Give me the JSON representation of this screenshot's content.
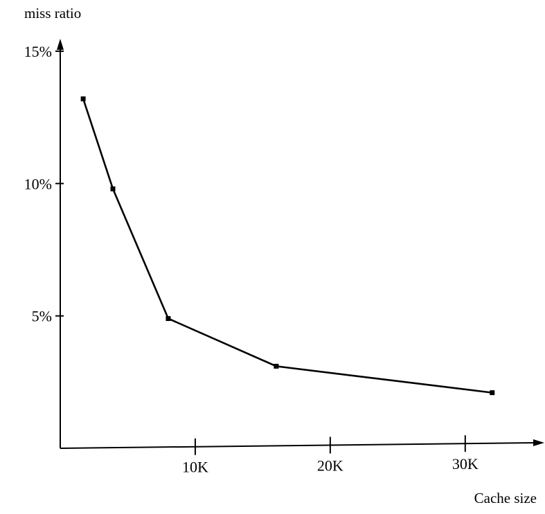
{
  "chart_data": {
    "type": "line",
    "title": "",
    "ylabel": "miss ratio",
    "xlabel": "Cache size",
    "xlim": [
      0,
      35.5
    ],
    "ylim": [
      0,
      15
    ],
    "x_ticks": [
      {
        "value": 10,
        "label": "10K"
      },
      {
        "value": 20,
        "label": "20K"
      },
      {
        "value": 30,
        "label": "30K"
      }
    ],
    "y_ticks": [
      {
        "value": 5,
        "label": "5%"
      },
      {
        "value": 10,
        "label": "10%"
      },
      {
        "value": 15,
        "label": "15%"
      }
    ],
    "grid": false,
    "series": [
      {
        "x": [
          1.7,
          3.9,
          8.0,
          16.0,
          32.0
        ],
        "y": [
          13.2,
          9.8,
          4.9,
          3.1,
          2.1
        ]
      }
    ]
  }
}
